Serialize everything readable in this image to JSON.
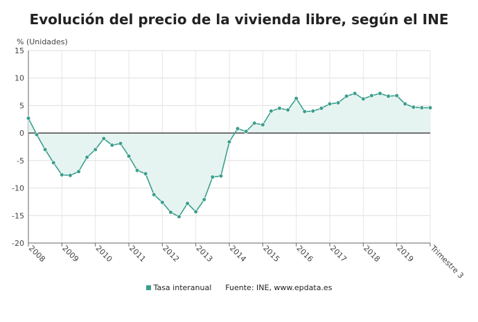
{
  "chart_data": {
    "type": "line",
    "title": "Evolución del precio de la vivienda libre, según el INE",
    "ylabel": "% (Unidades)",
    "ylim": [
      -20,
      15
    ],
    "yticks": [
      15,
      10,
      5,
      0,
      -5,
      -10,
      -15,
      -20
    ],
    "xlim": [
      2007.75,
      2019.75
    ],
    "xticks": [
      {
        "x": 2007.75,
        "label": "2008"
      },
      {
        "x": 2008.75,
        "label": "2009"
      },
      {
        "x": 2009.75,
        "label": "2010"
      },
      {
        "x": 2010.75,
        "label": "2011"
      },
      {
        "x": 2011.75,
        "label": "2012"
      },
      {
        "x": 2012.75,
        "label": "2013"
      },
      {
        "x": 2013.75,
        "label": "2014"
      },
      {
        "x": 2014.75,
        "label": "2015"
      },
      {
        "x": 2015.75,
        "label": "2016"
      },
      {
        "x": 2016.75,
        "label": "2017"
      },
      {
        "x": 2017.75,
        "label": "2018"
      },
      {
        "x": 2018.75,
        "label": "2019"
      },
      {
        "x": 2019.75,
        "label": "Trimestre 3"
      }
    ],
    "grid": true,
    "legend_position": "bottom",
    "series": [
      {
        "name": "Tasa interanual",
        "color": "#3a9e8c",
        "fill": "#e6f4f1",
        "x": [
          2007.75,
          2008.0,
          2008.25,
          2008.5,
          2008.75,
          2009.0,
          2009.25,
          2009.5,
          2009.75,
          2010.0,
          2010.25,
          2010.5,
          2010.75,
          2011.0,
          2011.25,
          2011.5,
          2011.75,
          2012.0,
          2012.25,
          2012.5,
          2012.75,
          2013.0,
          2013.25,
          2013.5,
          2013.75,
          2014.0,
          2014.25,
          2014.5,
          2014.75,
          2015.0,
          2015.25,
          2015.5,
          2015.75,
          2016.0,
          2016.25,
          2016.5,
          2016.75,
          2017.0,
          2017.25,
          2017.5,
          2017.75,
          2018.0,
          2018.25,
          2018.5,
          2018.75,
          2019.0,
          2019.25,
          2019.5,
          2019.75
        ],
        "values": [
          2.7,
          -0.3,
          -3.0,
          -5.4,
          -7.6,
          -7.7,
          -7.0,
          -4.4,
          -3.0,
          -1.0,
          -2.2,
          -1.9,
          -4.2,
          -6.8,
          -7.4,
          -11.2,
          -12.6,
          -14.4,
          -15.2,
          -12.8,
          -14.3,
          -12.1,
          -8.0,
          -7.8,
          -1.6,
          0.8,
          0.3,
          1.8,
          1.5,
          4.0,
          4.5,
          4.2,
          6.3,
          3.9,
          4.0,
          4.5,
          5.3,
          5.5,
          6.7,
          7.2,
          6.2,
          6.8,
          7.2,
          6.7,
          6.8,
          5.3,
          4.7,
          4.6,
          4.6
        ]
      }
    ],
    "source": "Fuente: INE, www.epdata.es"
  }
}
